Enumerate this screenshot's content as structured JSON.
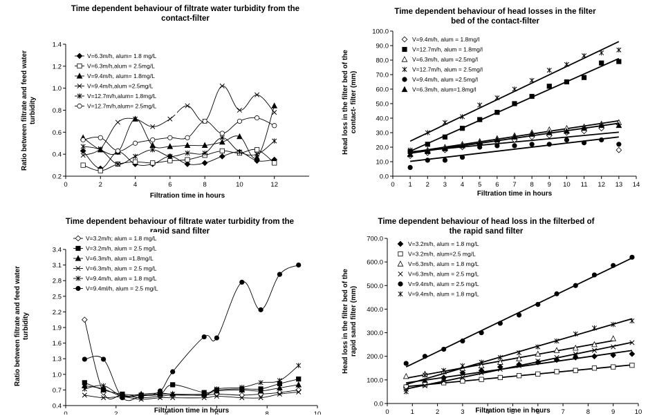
{
  "chart_data": [
    {
      "type": "scatter",
      "title_lines": [
        "Time dependent behaviour of filtrate water turbidity from the",
        "contact-filter"
      ],
      "xlabel": "Filtration time in hours",
      "ylabel_lines": [
        "Ratio between filtrate and feed water",
        "turbidity"
      ],
      "xlim": [
        0,
        14
      ],
      "ylim": [
        0.2,
        1.4
      ],
      "xticks": [
        0,
        2,
        4,
        6,
        8,
        10,
        12
      ],
      "yticks": [
        0.2,
        0.4,
        0.6,
        0.8,
        1.0,
        1.2,
        1.4
      ],
      "ytick_labels": [
        "0.2",
        "0.4",
        "0.6",
        "0.8",
        "1.0",
        "1.2",
        "1.4"
      ],
      "grid": false,
      "legend_position": "top-left",
      "curve": "smooth",
      "series": [
        {
          "name": "V=6.3m/h, alum= 1.8 mg/L",
          "marker": "diamond-filled",
          "x": [
            1,
            2,
            3,
            4,
            5,
            6,
            7,
            8,
            9,
            10,
            11,
            12
          ],
          "y": [
            0.43,
            0.27,
            0.42,
            0.31,
            0.31,
            0.38,
            0.31,
            0.32,
            0.38,
            0.42,
            0.34,
            0.35
          ]
        },
        {
          "name": "V=6.3m/h,alum = 2.5mg/L",
          "marker": "square-open",
          "x": [
            1,
            2,
            3,
            4,
            5,
            6,
            7,
            8,
            9,
            10,
            11,
            12
          ],
          "y": [
            0.3,
            0.25,
            0.31,
            0.33,
            0.32,
            0.34,
            0.35,
            0.39,
            0.43,
            0.41,
            0.44,
            0.32
          ]
        },
        {
          "name": "V=9.4m/h, alum= 1.8mg/L",
          "marker": "triangle-filled",
          "x": [
            1,
            2,
            3,
            4,
            5,
            6,
            7,
            8,
            9,
            10,
            11,
            12
          ],
          "y": [
            0.55,
            0.44,
            0.42,
            0.72,
            0.48,
            0.47,
            0.48,
            0.48,
            0.51,
            0.56,
            0.37,
            0.84
          ]
        },
        {
          "name": "V=9.4m/h,alum =2.5mg/L",
          "marker": "x",
          "x": [
            1,
            2,
            3,
            4,
            5,
            6,
            7,
            8,
            9,
            10,
            11,
            12
          ],
          "y": [
            0.39,
            0.45,
            0.69,
            0.72,
            0.65,
            0.72,
            0.84,
            0.7,
            1.02,
            0.8,
            0.94,
            0.78
          ]
        },
        {
          "name": "V=12.7m/h,alum= 1.8mg/L",
          "marker": "star",
          "x": [
            1,
            2,
            3,
            4,
            5,
            6,
            7,
            8,
            9,
            10,
            11,
            12
          ],
          "y": [
            0.47,
            0.44,
            0.31,
            0.38,
            0.44,
            0.38,
            0.41,
            0.41,
            0.55,
            0.42,
            0.4,
            0.52
          ]
        },
        {
          "name": "V=12.7m/h,alum= 2.5mg/L",
          "marker": "circle-open",
          "x": [
            1,
            2,
            3,
            4,
            5,
            6,
            7,
            8,
            9,
            10,
            11,
            12
          ],
          "y": [
            0.53,
            0.55,
            0.43,
            0.5,
            0.53,
            0.55,
            0.55,
            0.7,
            0.59,
            0.7,
            0.73,
            0.66
          ]
        }
      ]
    },
    {
      "type": "scatter",
      "title_lines": [
        "Time dependent behaviour of head losses in the filter",
        "bed of the contact-filter"
      ],
      "xlabel": "Filtration time in hours",
      "ylabel_lines": [
        "Head loss in the filter bed of the",
        "contact- filter (mm)"
      ],
      "xlim": [
        0,
        14
      ],
      "ylim": [
        0,
        100
      ],
      "xticks": [
        0,
        1,
        2,
        3,
        4,
        5,
        6,
        7,
        8,
        9,
        10,
        11,
        12,
        13,
        14
      ],
      "yticks": [
        0,
        10,
        20,
        30,
        40,
        50,
        60,
        70,
        80,
        90,
        100
      ],
      "ytick_labels": [
        "0.0",
        "10.0",
        "20.0",
        "30.0",
        "40.0",
        "50.0",
        "60.0",
        "70.0",
        "80.0",
        "90.0",
        "100.0"
      ],
      "grid": false,
      "legend_position": "top-left",
      "curve": "linear-trend",
      "series": [
        {
          "name": "V=9.4m/h, alum = 1.8mg/l",
          "marker": "diamond-open",
          "x": [
            1,
            2,
            3,
            4,
            5,
            6,
            7,
            8,
            9,
            10,
            11,
            12,
            13
          ],
          "y": [
            14,
            16,
            18,
            20,
            22,
            24,
            25,
            27,
            28,
            30,
            31,
            33,
            18
          ]
        },
        {
          "name": "V=12.7m/h, alum = 1.8mg/l",
          "marker": "square-filled",
          "x": [
            1,
            2,
            3,
            4,
            5,
            6,
            7,
            8,
            9,
            10,
            11,
            12,
            13
          ],
          "y": [
            17,
            22,
            27,
            33,
            39,
            44,
            50,
            55,
            62,
            65,
            68,
            78,
            79
          ]
        },
        {
          "name": "V=6.3m/h, alum =2.5mg/l",
          "marker": "triangle-open",
          "x": [
            1,
            2,
            3,
            4,
            5,
            6,
            7,
            8,
            9,
            10,
            11,
            12,
            13
          ],
          "y": [
            15,
            18,
            20,
            22,
            24,
            26,
            28,
            30,
            32,
            33,
            34,
            36,
            37
          ]
        },
        {
          "name": "V=12.7m/h, alum = 2.5mg/l",
          "marker": "star",
          "x": [
            1,
            2,
            3,
            4,
            5,
            6,
            7,
            8,
            9,
            10,
            11,
            12,
            13
          ],
          "y": [
            18,
            30,
            37,
            41,
            49,
            54,
            60,
            66,
            73,
            77,
            83,
            85,
            87
          ]
        },
        {
          "name": "V=9.4m/h, alum =2.5mg/l",
          "marker": "circle-filled",
          "x": [
            1,
            2,
            3,
            4,
            5,
            6,
            7,
            8,
            9,
            10,
            11,
            12,
            13
          ],
          "y": [
            6,
            11,
            11,
            13,
            20,
            21,
            21,
            22,
            22,
            25,
            23,
            25,
            22
          ]
        },
        {
          "name": "V=6.3m/h, alum=1.8mg/l",
          "marker": "triangle-filled",
          "x": [
            1,
            2,
            3,
            4,
            5,
            6,
            7,
            8,
            9,
            10,
            11,
            12,
            13
          ],
          "y": [
            15,
            17,
            19,
            21,
            23,
            25,
            27,
            29,
            30,
            31,
            33,
            35,
            35
          ]
        }
      ]
    },
    {
      "type": "scatter",
      "title_lines": [
        "Time dependent behaviour of filtrate water turbidity from the",
        "rapid sand filter"
      ],
      "xlabel": "Filtration time in hours",
      "ylabel_lines": [
        "Ratio between filtrate and feed water",
        "turbidity"
      ],
      "xlim": [
        0,
        10
      ],
      "ylim": [
        0.4,
        3.4
      ],
      "xticks": [
        0,
        2,
        4,
        6,
        8,
        10
      ],
      "yticks": [
        0.4,
        0.7,
        1.0,
        1.3,
        1.6,
        1.9,
        2.2,
        2.5,
        2.8,
        3.1,
        3.4
      ],
      "ytick_labels": [
        "0.4",
        "0.7",
        "1.0",
        "1.3",
        "1.6",
        "1.9",
        "2.2",
        "2.5",
        "2.8",
        "3.1",
        "3.4"
      ],
      "grid": false,
      "legend_position": "top-left",
      "curve": "smooth",
      "series": [
        {
          "name": "V=3.2m/h; alum = 1.8 mg/L",
          "marker": "diamond-open",
          "x": [
            0.75,
            1.5,
            2.25,
            3,
            3.75,
            4.25,
            5.5,
            6,
            7,
            7.75,
            8.5,
            9.25
          ],
          "y": [
            2.05,
            0.65,
            0.6,
            0.55,
            0.58,
            0.6,
            0.6,
            0.62,
            0.6,
            0.62,
            0.65,
            0.7
          ]
        },
        {
          "name": "V=3.2m/h, alum = 2.5 mg/L",
          "marker": "square-filled",
          "x": [
            0.75,
            1.5,
            2.25,
            3,
            3.75,
            4.25,
            5.5,
            6,
            7,
            7.75,
            8.5,
            9.25
          ],
          "y": [
            0.84,
            0.7,
            0.62,
            0.6,
            0.62,
            0.8,
            0.65,
            0.7,
            0.72,
            0.72,
            0.82,
            0.91
          ]
        },
        {
          "name": "V=6.3m/h, alum =1.8mg/L",
          "marker": "triangle-filled",
          "x": [
            0.75,
            1.5,
            2.25,
            3,
            3.75,
            4.25,
            5.5,
            6,
            7,
            7.75,
            8.5,
            9.25
          ],
          "y": [
            0.78,
            0.72,
            0.58,
            0.62,
            0.64,
            0.62,
            0.62,
            0.68,
            0.7,
            0.68,
            0.74,
            0.8
          ]
        },
        {
          "name": "V=6.3m/h, alum = 2.5 mg/L",
          "marker": "x",
          "x": [
            0.75,
            1.5,
            2.25,
            3,
            3.75,
            4.25,
            5.5,
            6,
            7,
            7.75,
            8.5,
            9.25
          ],
          "y": [
            0.6,
            0.55,
            0.57,
            0.52,
            0.55,
            0.55,
            0.55,
            0.58,
            0.55,
            0.55,
            0.62,
            0.66
          ]
        },
        {
          "name": "V=9.4m/h, alum = 1.8 mg/L",
          "marker": "star",
          "x": [
            0.75,
            1.5,
            2.25,
            3,
            3.75,
            4.25,
            5.5,
            6,
            7,
            7.75,
            8.5,
            9.25
          ],
          "y": [
            0.72,
            0.78,
            0.58,
            0.6,
            0.62,
            0.62,
            0.6,
            0.72,
            0.75,
            0.84,
            0.88,
            1.17
          ]
        },
        {
          "name": "V=9.4ml/h, alum = 2.5 mg/L",
          "marker": "circle-filled",
          "x": [
            0.75,
            1.5,
            2.25,
            3,
            3.75,
            4.25,
            5.5,
            6,
            7,
            7.75,
            8.5,
            9.25
          ],
          "y": [
            1.29,
            1.29,
            0.55,
            0.58,
            0.68,
            1.05,
            1.72,
            1.7,
            2.77,
            2.24,
            2.92,
            3.1
          ]
        }
      ]
    },
    {
      "type": "scatter",
      "title_lines": [
        "Time dependent behaviour of head loss in the filterbed of",
        "the rapid sand filter"
      ],
      "xlabel": "Filtration time in hours",
      "ylabel_lines": [
        "Head loss in the filter bed of the",
        "rapid sand filter (mm)"
      ],
      "xlim": [
        0,
        10
      ],
      "ylim": [
        0,
        700
      ],
      "xticks": [
        0,
        1,
        2,
        3,
        4,
        5,
        6,
        7,
        8,
        9,
        10
      ],
      "yticks": [
        0,
        100,
        200,
        300,
        400,
        500,
        600,
        700
      ],
      "ytick_labels": [
        "0.0",
        "100.0",
        "200.0",
        "300.0",
        "400.0",
        "500.0",
        "600.0",
        "700.0"
      ],
      "grid": false,
      "legend_position": "top-left",
      "curve": "linear-trend",
      "series": [
        {
          "name": "V=3.2m/h, alum = 1.8 mg/L",
          "marker": "diamond-filled",
          "x": [
            0.75,
            1.5,
            2.25,
            3,
            3.75,
            4.5,
            5.25,
            6,
            6.75,
            7.5,
            8.25,
            9,
            9.75
          ],
          "y": [
            70,
            90,
            110,
            130,
            140,
            155,
            165,
            175,
            185,
            195,
            200,
            205,
            210
          ]
        },
        {
          "name": "V=3.2m/h, alum=2.5 mg/L",
          "marker": "square-open",
          "x": [
            0.75,
            1.5,
            2.25,
            3,
            3.75,
            4.5,
            5.25,
            6,
            6.75,
            7.5,
            8.25,
            9,
            9.75
          ],
          "y": [
            70,
            80,
            88,
            95,
            102,
            110,
            118,
            125,
            135,
            140,
            150,
            155,
            162
          ]
        },
        {
          "name": "V=6.3m/h, alum = 1.8 mg/L",
          "marker": "triangle-open",
          "x": [
            0.75,
            1.5,
            2.25,
            3,
            3.75,
            4.5,
            5.25,
            6,
            6.75,
            7.5,
            8.25,
            9
          ],
          "y": [
            115,
            125,
            135,
            148,
            160,
            175,
            190,
            210,
            225,
            235,
            250,
            275
          ]
        },
        {
          "name": "V=6.3m/h, alum = 2.5 mg/L",
          "marker": "x",
          "x": [
            0.75,
            1.5,
            2.25,
            3,
            3.75,
            4.5,
            5.25,
            6,
            6.75,
            7.5,
            8.25,
            9,
            9.75
          ],
          "y": [
            60,
            75,
            95,
            110,
            130,
            145,
            160,
            180,
            195,
            210,
            225,
            240,
            258
          ]
        },
        {
          "name": "V=9.4m/h, alum = 2.5 mg/L",
          "marker": "circle-filled",
          "x": [
            0.75,
            1.5,
            2.25,
            3,
            3.75,
            4.5,
            5.25,
            6,
            6.75,
            7.5,
            8.25,
            9,
            9.75
          ],
          "y": [
            170,
            200,
            230,
            265,
            300,
            340,
            375,
            420,
            465,
            500,
            545,
            585,
            620
          ]
        },
        {
          "name": "V=9.4m/h, alum = 1.8 mg/L",
          "marker": "star",
          "x": [
            0.75,
            1.5,
            2.25,
            3,
            3.75,
            4.5,
            5.25,
            6,
            6.75,
            7.5,
            8.25,
            9,
            9.75
          ],
          "y": [
            50,
            120,
            140,
            160,
            175,
            195,
            215,
            240,
            265,
            295,
            320,
            335,
            350
          ]
        }
      ]
    }
  ]
}
